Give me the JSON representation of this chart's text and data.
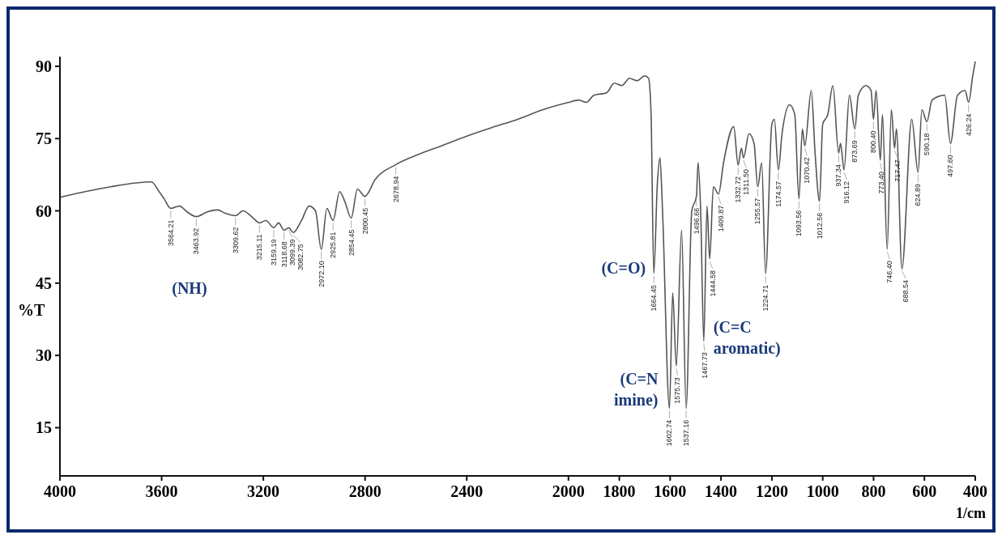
{
  "chart_data": {
    "type": "line",
    "xlabel": "1/cm",
    "ylabel": "%T",
    "xlim": [
      4000,
      400
    ],
    "xticks": [
      4000,
      3600,
      3200,
      2800,
      2400,
      2000,
      1800,
      1600,
      1400,
      1200,
      1000,
      800,
      600,
      400
    ],
    "ylim": [
      5,
      92
    ],
    "yticks": [
      15,
      30,
      45,
      60,
      75,
      90
    ],
    "series": [
      {
        "color": "#555555",
        "x": [
          4000,
          3900,
          3800,
          3700,
          3640,
          3610,
          3590,
          3564.21,
          3530,
          3500,
          3463.92,
          3420,
          3380,
          3350,
          3309.62,
          3280,
          3240,
          3215.11,
          3190,
          3159.19,
          3140,
          3118.68,
          3099.39,
          3082.75,
          3050,
          3020,
          2995,
          2972.1,
          2950,
          2925.81,
          2900,
          2880,
          2854.45,
          2830,
          2800.45,
          2760,
          2678.94,
          2600,
          2500,
          2400,
          2300,
          2200,
          2100,
          2000,
          1960,
          1930,
          1900,
          1850,
          1820,
          1790,
          1760,
          1730,
          1700,
          1685,
          1675,
          1664.45,
          1650,
          1640,
          1630,
          1602.74,
          1590,
          1575.73,
          1555,
          1537.16,
          1515,
          1496.66,
          1490,
          1480,
          1467.73,
          1455,
          1444.58,
          1430,
          1409.87,
          1390,
          1350,
          1332.72,
          1320,
          1311.5,
          1290,
          1270,
          1255.57,
          1240,
          1224.71,
          1200,
          1190,
          1174.57,
          1160,
          1130,
          1110,
          1093.56,
          1080,
          1070.42,
          1045,
          1030,
          1012.56,
          1000,
          980,
          960,
          937.34,
          930,
          916.12,
          895,
          873.69,
          860,
          830,
          810,
          800.4,
          790,
          773.4,
          765,
          746.4,
          730,
          717.47,
          710,
          688.54,
          650,
          624.89,
          610,
          590.18,
          570,
          520,
          497.6,
          470,
          440,
          426.24,
          410,
          400
        ],
        "values": [
          62.8,
          64,
          65,
          65.8,
          66,
          64,
          62.5,
          60.5,
          61,
          59.8,
          58.8,
          59.8,
          60.2,
          59.5,
          59,
          60,
          58.5,
          57.5,
          58,
          56.5,
          57.5,
          56,
          56.5,
          55.5,
          58,
          61,
          60,
          52,
          60.5,
          58,
          64,
          62,
          58.5,
          64.5,
          63,
          66.5,
          69.6,
          71.5,
          73.5,
          75.5,
          77.3,
          79,
          81,
          82.5,
          83,
          82.5,
          84,
          84.5,
          86.5,
          86,
          87.5,
          87,
          88,
          87.5,
          80,
          47,
          66,
          71,
          60,
          19,
          43,
          27.8,
          56,
          19,
          60,
          63,
          70,
          60,
          33,
          61,
          50,
          65,
          63.5,
          70,
          77.5,
          69.5,
          73,
          71,
          76,
          74,
          65,
          70,
          47,
          78,
          79,
          68.5,
          76,
          82,
          80,
          62.5,
          77,
          73.5,
          85,
          72,
          62,
          78,
          80,
          86,
          72,
          74,
          68.5,
          84,
          77,
          84,
          86,
          85,
          79,
          85,
          70.5,
          80,
          52,
          81,
          73,
          77,
          48,
          79,
          68,
          81,
          78.5,
          83,
          84,
          74,
          84,
          85,
          82.5,
          88,
          91
        ]
      }
    ],
    "annotations": [
      {
        "text": "3564.21",
        "x": 3564.21,
        "y": 60.5
      },
      {
        "text": "3463.92",
        "x": 3463.92,
        "y": 58.8
      },
      {
        "text": "3309.62",
        "x": 3309.62,
        "y": 59
      },
      {
        "text": "3215.11",
        "x": 3215.11,
        "y": 57.5
      },
      {
        "text": "3159.19",
        "x": 3159.19,
        "y": 56.5
      },
      {
        "text": "3118.68",
        "x": 3118.68,
        "y": 56
      },
      {
        "text": "3099.39",
        "x": 3099.39,
        "y": 56.5
      },
      {
        "text": "3082.75",
        "x": 3082.75,
        "y": 55.5
      },
      {
        "text": "2972.10",
        "x": 2972.1,
        "y": 52
      },
      {
        "text": "2925.81",
        "x": 2925.81,
        "y": 58
      },
      {
        "text": "2854.45",
        "x": 2854.45,
        "y": 58.5
      },
      {
        "text": "2800.45",
        "x": 2800.45,
        "y": 63
      },
      {
        "text": "2678.94",
        "x": 2678.94,
        "y": 69.6
      },
      {
        "text": "1664.45",
        "x": 1664.45,
        "y": 47
      },
      {
        "text": "1602.74",
        "x": 1602.74,
        "y": 19
      },
      {
        "text": "1575.73",
        "x": 1575.73,
        "y": 27.8
      },
      {
        "text": "1537.16",
        "x": 1537.16,
        "y": 19
      },
      {
        "text": "1496.66",
        "x": 1496.66,
        "y": 63
      },
      {
        "text": "1467.73",
        "x": 1467.73,
        "y": 33
      },
      {
        "text": "1444.58",
        "x": 1444.58,
        "y": 50
      },
      {
        "text": "1409.87",
        "x": 1409.87,
        "y": 63.5
      },
      {
        "text": "1332.72",
        "x": 1332.72,
        "y": 69.5
      },
      {
        "text": "1311.50",
        "x": 1311.5,
        "y": 71
      },
      {
        "text": "1255.57",
        "x": 1255.57,
        "y": 65
      },
      {
        "text": "1224.71",
        "x": 1224.71,
        "y": 47
      },
      {
        "text": "1174.57",
        "x": 1174.57,
        "y": 68.5
      },
      {
        "text": "1093.56",
        "x": 1093.56,
        "y": 62.5
      },
      {
        "text": "1070.42",
        "x": 1070.42,
        "y": 73.5
      },
      {
        "text": "1012.56",
        "x": 1012.56,
        "y": 62
      },
      {
        "text": "937.34",
        "x": 937.34,
        "y": 72
      },
      {
        "text": "916.12",
        "x": 916.12,
        "y": 68.5
      },
      {
        "text": "873.69",
        "x": 873.69,
        "y": 77
      },
      {
        "text": "800.40",
        "x": 800.4,
        "y": 79
      },
      {
        "text": "773.40",
        "x": 773.4,
        "y": 70.5
      },
      {
        "text": "746.40",
        "x": 746.4,
        "y": 52
      },
      {
        "text": "717.47",
        "x": 717.47,
        "y": 73
      },
      {
        "text": "688.54",
        "x": 688.54,
        "y": 48
      },
      {
        "text": "624.89",
        "x": 624.89,
        "y": 68
      },
      {
        "text": "590.18",
        "x": 590.18,
        "y": 78.5
      },
      {
        "text": "497.60",
        "x": 497.6,
        "y": 74
      },
      {
        "text": "426.24",
        "x": 426.24,
        "y": 82.5
      },
      "(NH)",
      "(C=O)",
      "(C=N\nimine)",
      "(C=C\naromatic)"
    ]
  }
}
